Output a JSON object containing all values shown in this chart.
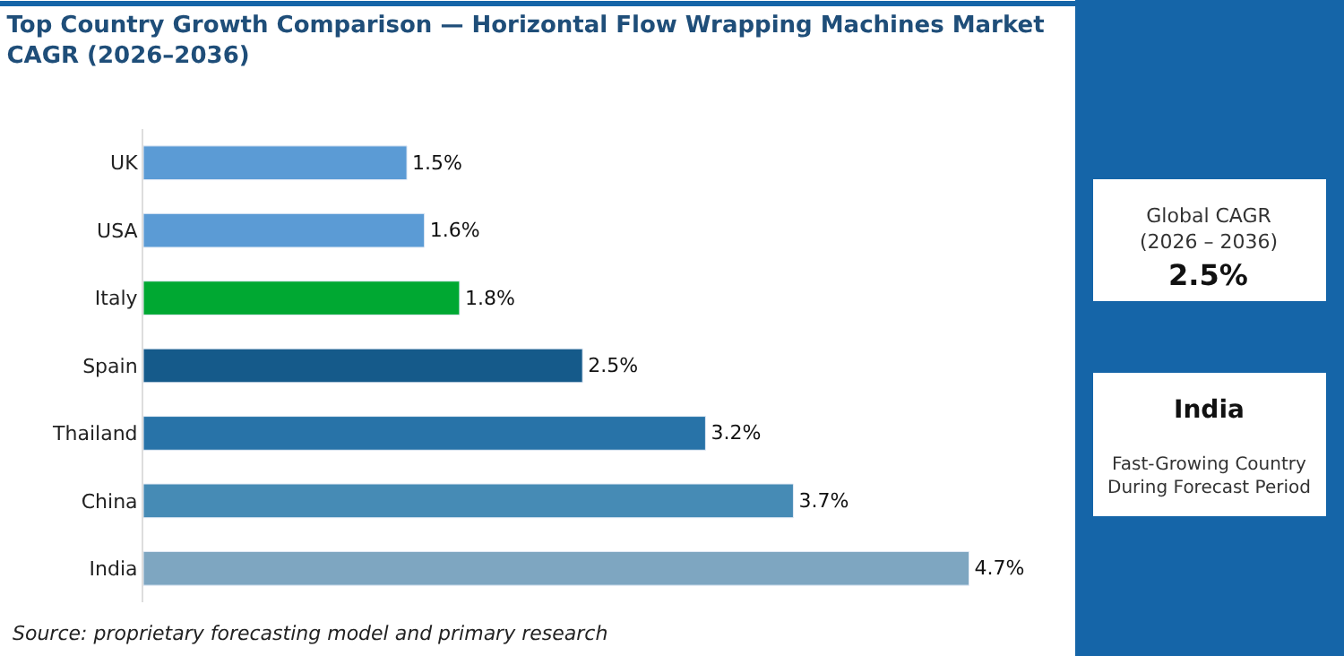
{
  "chart_data": {
    "type": "bar",
    "orientation": "horizontal",
    "title": "Top Country Growth Comparison — Horizontal Flow Wrapping Machines Market\nCAGR (2026–2036)",
    "categories": [
      "UK",
      "USA",
      "Italy",
      "Spain",
      "Thailand",
      "China",
      "India"
    ],
    "values": [
      1.5,
      1.6,
      1.8,
      2.5,
      3.2,
      3.7,
      4.7
    ],
    "colors": [
      "#5b9bd5",
      "#5b9bd5",
      "#00a832",
      "#155a8a",
      "#2873a8",
      "#468bb5",
      "#7ea6c1"
    ],
    "value_labels": [
      "1.5%",
      "1.6%",
      "1.8%",
      "2.5%",
      "3.2%",
      "3.7%",
      "4.7%"
    ],
    "tick_labels": "y",
    "annotations": [
      "Source: proprietary forecasting model and primary research",
      "Global CAGR\n(2026 – 2036)",
      "2.5%",
      "India",
      "Fast-Growing Country\nDuring Forecast Period"
    ]
  }
}
